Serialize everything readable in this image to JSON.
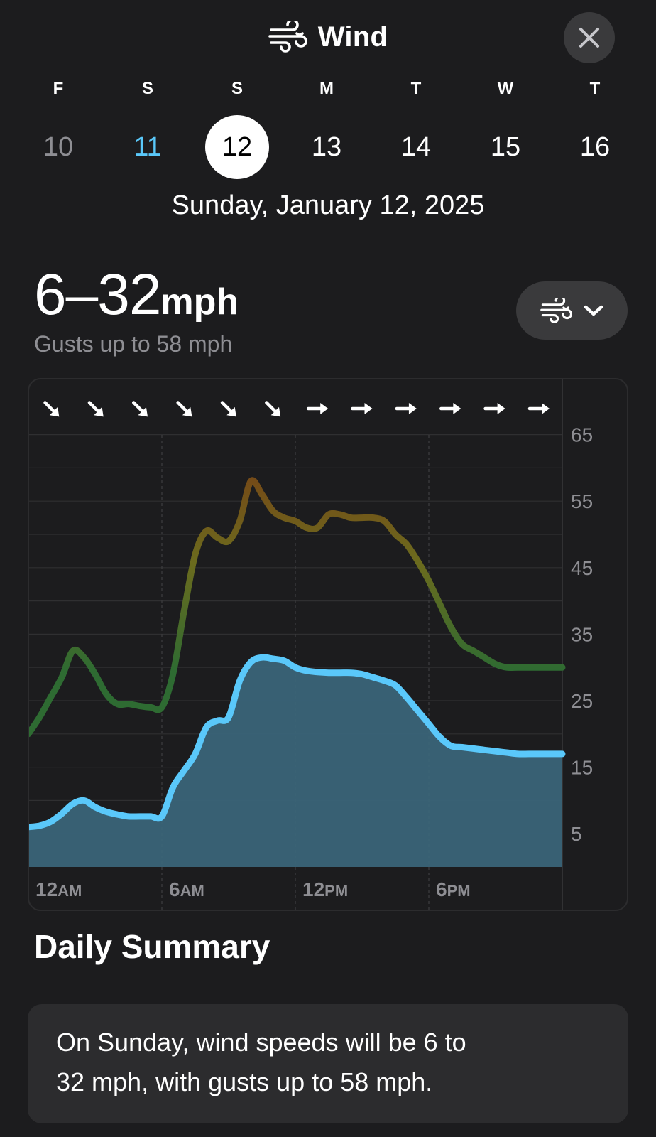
{
  "header": {
    "title": "Wind",
    "title_icon": "wind-icon",
    "close_icon": "close-icon",
    "days": [
      {
        "dow": "F",
        "num": "10",
        "state": "past"
      },
      {
        "dow": "S",
        "num": "11",
        "state": "today"
      },
      {
        "dow": "S",
        "num": "12",
        "state": "selected"
      },
      {
        "dow": "M",
        "num": "13",
        "state": "future"
      },
      {
        "dow": "T",
        "num": "14",
        "state": "future"
      },
      {
        "dow": "W",
        "num": "15",
        "state": "future"
      },
      {
        "dow": "T",
        "num": "16",
        "state": "future"
      }
    ],
    "selected_date": "Sunday, January 12, 2025"
  },
  "summary": {
    "speed_range": "6–32",
    "unit": "mph",
    "gusts": "Gusts up to 58 mph"
  },
  "picker": {
    "icon": "wind-icon",
    "chevron": "chevron-down-icon"
  },
  "colors": {
    "background": "#1c1c1e",
    "accent": "#5ac8fa",
    "wind_fill": "#3a6478",
    "gust_low": "#2e6b32",
    "gust_mid": "#6b6b1e",
    "gust_high": "#7a3a14"
  },
  "chart_data": {
    "type": "area",
    "y_ticks": [
      "65",
      "55",
      "45",
      "35",
      "25",
      "15",
      "5"
    ],
    "ylim": [
      0,
      65
    ],
    "x_ticks": [
      {
        "label": "12AM",
        "hour": 0
      },
      {
        "label": "6AM",
        "hour": 6
      },
      {
        "label": "12PM",
        "hour": 12
      },
      {
        "label": "6PM",
        "hour": 18
      }
    ],
    "grid": true,
    "direction_arrows": [
      "SE",
      "SE",
      "SE",
      "SE",
      "SE",
      "SE",
      "E",
      "E",
      "E",
      "E",
      "E",
      "E"
    ],
    "series": [
      {
        "style": "gust-line",
        "x": [
          0,
          0.5,
          1,
          1.5,
          2,
          2.5,
          3,
          3.5,
          4,
          4.5,
          5,
          5.5,
          6,
          6.5,
          7,
          7.5,
          8,
          8.5,
          9,
          9.5,
          10,
          10.5,
          11,
          11.5,
          12,
          12.5,
          13,
          13.5,
          14,
          14.5,
          15,
          15.5,
          16,
          16.5,
          17,
          17.5,
          18,
          18.5,
          19,
          19.5,
          20,
          20.5,
          21,
          21.5,
          22,
          22.5,
          23,
          23.5,
          24
        ],
        "values": [
          20,
          22.5,
          25.5,
          28.5,
          32.5,
          31.5,
          29,
          26,
          24.5,
          24.5,
          24.2,
          24,
          24,
          29,
          38.5,
          47,
          50.5,
          49.5,
          49,
          52,
          58,
          56,
          53.5,
          52.5,
          52,
          51,
          51,
          53,
          53,
          52.5,
          52.5,
          52.5,
          52,
          50,
          48.5,
          46,
          43,
          39.5,
          36,
          33.5,
          32.5,
          31.5,
          30.5,
          30,
          30,
          30,
          30,
          30,
          30
        ]
      },
      {
        "style": "wind-area",
        "x": [
          0,
          0.5,
          1,
          1.5,
          2,
          2.5,
          3,
          3.5,
          4,
          4.5,
          5,
          5.5,
          6,
          6.5,
          7,
          7.5,
          8,
          8.5,
          9,
          9.5,
          10,
          10.5,
          11,
          11.5,
          12,
          12.5,
          13,
          13.5,
          14,
          14.5,
          15,
          15.5,
          16,
          16.5,
          17,
          17.5,
          18,
          18.5,
          19,
          19.5,
          20,
          20.5,
          21,
          21.5,
          22,
          22.5,
          23,
          23.5,
          24
        ],
        "values": [
          6,
          6.2,
          6.8,
          8,
          9.5,
          10,
          9,
          8.3,
          7.9,
          7.6,
          7.6,
          7.6,
          7.6,
          12,
          14.5,
          17,
          21,
          22,
          22.5,
          28,
          30.8,
          31.5,
          31.3,
          31,
          30,
          29.5,
          29.3,
          29.2,
          29.2,
          29.2,
          29,
          28.5,
          28,
          27.3,
          25.5,
          23.5,
          21.5,
          19.5,
          18.2,
          18,
          17.8,
          17.6,
          17.4,
          17.2,
          17,
          17,
          17,
          17,
          17
        ]
      }
    ]
  },
  "daily_summary": {
    "heading": "Daily Summary",
    "lines": [
      "On Sunday, wind speeds will be 6 to",
      "32 mph, with gusts up to 58 mph."
    ]
  }
}
